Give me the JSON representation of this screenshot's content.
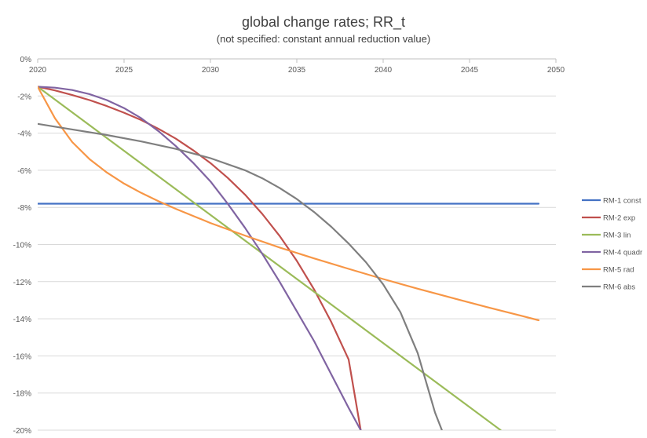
{
  "chart_data": {
    "type": "line",
    "title": "global change rates; RR_t",
    "subtitle": "(not specified: constant annual reduction value)",
    "xlabel": "",
    "ylabel": "",
    "xlim": [
      2020,
      2050
    ],
    "ylim": [
      -0.2,
      0
    ],
    "grid": true,
    "legend_position": "right",
    "x_tick_labels": [
      "2020",
      "2025",
      "2030",
      "2035",
      "2040",
      "2045",
      "2050"
    ],
    "y_tick_labels": [
      "0%",
      "-2%",
      "-4%",
      "-6%",
      "-8%",
      "-10%",
      "-12%",
      "-14%",
      "-16%",
      "-18%",
      "-20%"
    ],
    "series": [
      {
        "name": "RM-1 const",
        "color": "#4472C4",
        "x": [
          2020,
          2049
        ],
        "y": [
          -0.078,
          -0.078
        ]
      },
      {
        "name": "RM-2 exp",
        "color": "#C0504D",
        "x": [
          2020,
          2021,
          2022,
          2023,
          2024,
          2025,
          2026,
          2027,
          2028,
          2029,
          2030,
          2031,
          2032,
          2033,
          2034,
          2035,
          2036,
          2037,
          2038,
          2038.7
        ],
        "y": [
          -0.015,
          -0.017,
          -0.0195,
          -0.0222,
          -0.0254,
          -0.029,
          -0.033,
          -0.0377,
          -0.043,
          -0.0492,
          -0.0561,
          -0.0641,
          -0.0731,
          -0.0835,
          -0.0953,
          -0.1088,
          -0.1242,
          -0.1418,
          -0.1619,
          -0.2
        ]
      },
      {
        "name": "RM-3 lin",
        "color": "#9BBB59",
        "x": [
          2020,
          2046.8
        ],
        "y": [
          -0.015,
          -0.2
        ]
      },
      {
        "name": "RM-4 quadr",
        "color": "#8064A2",
        "x": [
          2020,
          2021,
          2022,
          2023,
          2024,
          2025,
          2026,
          2027,
          2028,
          2029,
          2030,
          2031,
          2032,
          2033,
          2034,
          2035,
          2036,
          2037,
          2038,
          2038.7
        ],
        "y": [
          -0.015,
          -0.0155,
          -0.0168,
          -0.019,
          -0.0222,
          -0.0265,
          -0.032,
          -0.039,
          -0.047,
          -0.056,
          -0.066,
          -0.078,
          -0.091,
          -0.105,
          -0.12,
          -0.136,
          -0.152,
          -0.17,
          -0.188,
          -0.2
        ]
      },
      {
        "name": "RM-5 rad",
        "color": "#F79646",
        "x": [
          2020,
          2021,
          2022,
          2023,
          2024,
          2025,
          2026,
          2027,
          2028,
          2030,
          2032,
          2034,
          2036,
          2038,
          2040,
          2042,
          2044,
          2046,
          2048,
          2049
        ],
        "y": [
          -0.015,
          -0.032,
          -0.0448,
          -0.054,
          -0.0612,
          -0.0672,
          -0.0722,
          -0.0767,
          -0.0808,
          -0.0884,
          -0.0952,
          -0.1016,
          -0.1075,
          -0.1131,
          -0.1186,
          -0.1238,
          -0.1288,
          -0.1337,
          -0.1384,
          -0.1408
        ]
      },
      {
        "name": "RM-6 abs",
        "color": "#7F7F7F",
        "x": [
          2020,
          2022,
          2024,
          2026,
          2028,
          2030,
          2032,
          2033,
          2034,
          2035,
          2036,
          2037,
          2038,
          2039,
          2040,
          2041,
          2042,
          2043,
          2043.4
        ],
        "y": [
          -0.035,
          -0.038,
          -0.041,
          -0.0445,
          -0.0485,
          -0.0535,
          -0.06,
          -0.0643,
          -0.0695,
          -0.0755,
          -0.0825,
          -0.0905,
          -0.0995,
          -0.1095,
          -0.1215,
          -0.1365,
          -0.1585,
          -0.1905,
          -0.2
        ]
      }
    ]
  }
}
